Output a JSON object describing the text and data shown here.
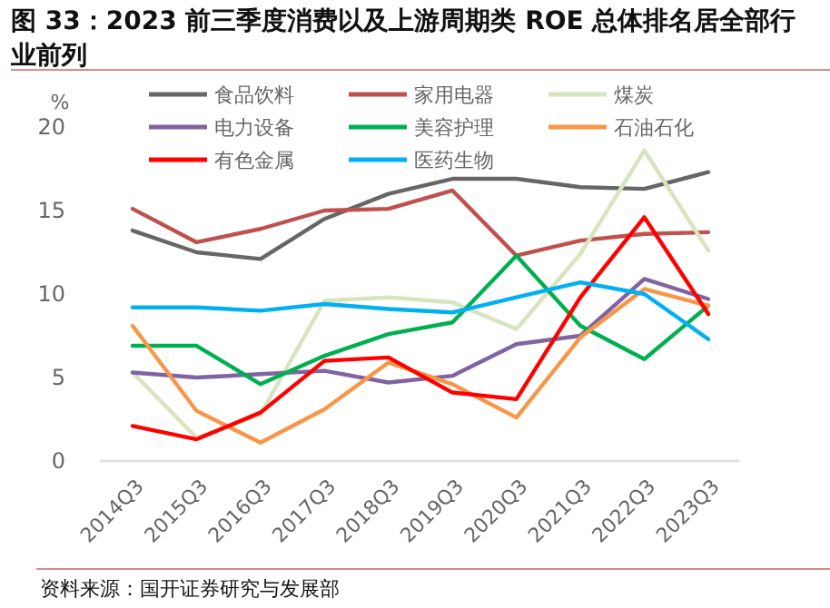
{
  "chart_data": {
    "type": "line",
    "title": "图 33：2023 前三季度消费以及上游周期类 ROE 总体排名居全部行业前列",
    "ylabel": "%",
    "annotations": [
      "资料来源：国开证券研究与发展部"
    ],
    "categories": [
      "2014Q3",
      "2015Q3",
      "2016Q3",
      "2017Q3",
      "2018Q3",
      "2019Q3",
      "2020Q3",
      "2021Q3",
      "2022Q3",
      "2023Q3"
    ],
    "series": [
      {
        "name": "食品饮料",
        "color": "#666666",
        "values": [
          13.8,
          12.5,
          12.1,
          14.5,
          16.0,
          16.9,
          16.9,
          16.4,
          16.3,
          17.3
        ]
      },
      {
        "name": "家用电器",
        "color": "#c0504d",
        "values": [
          15.1,
          13.1,
          13.9,
          15.0,
          15.1,
          16.2,
          12.3,
          13.2,
          13.6,
          13.7
        ]
      },
      {
        "name": "煤炭",
        "color": "#d7e4bd",
        "values": [
          5.3,
          1.4,
          2.8,
          9.6,
          9.8,
          9.5,
          7.9,
          12.4,
          18.6,
          12.6
        ]
      },
      {
        "name": "电力设备",
        "color": "#8064a2",
        "values": [
          5.3,
          5.0,
          5.2,
          5.4,
          4.7,
          5.1,
          7.0,
          7.5,
          10.9,
          9.7
        ]
      },
      {
        "name": "美容护理",
        "color": "#00b050",
        "values": [
          6.9,
          6.9,
          4.6,
          6.3,
          7.6,
          8.3,
          12.3,
          8.1,
          6.1,
          9.3
        ]
      },
      {
        "name": "石油石化",
        "color": "#f79646",
        "values": [
          8.1,
          3.0,
          1.1,
          3.1,
          5.9,
          4.6,
          2.6,
          7.4,
          10.3,
          9.3
        ]
      },
      {
        "name": "有色金属",
        "color": "#ff0000",
        "values": [
          2.1,
          1.3,
          2.9,
          6.0,
          6.2,
          4.1,
          3.7,
          9.8,
          14.6,
          8.8
        ]
      },
      {
        "name": "医药生物",
        "color": "#00b0f0",
        "values": [
          9.2,
          9.2,
          9.0,
          9.4,
          9.1,
          8.9,
          9.8,
          10.7,
          10.0,
          7.3
        ]
      }
    ],
    "ylim": [
      0,
      20
    ],
    "yticks": [
      0,
      5,
      10,
      15,
      20
    ],
    "grid": false,
    "legend": "top",
    "marker": "none",
    "line_style": "solid"
  }
}
